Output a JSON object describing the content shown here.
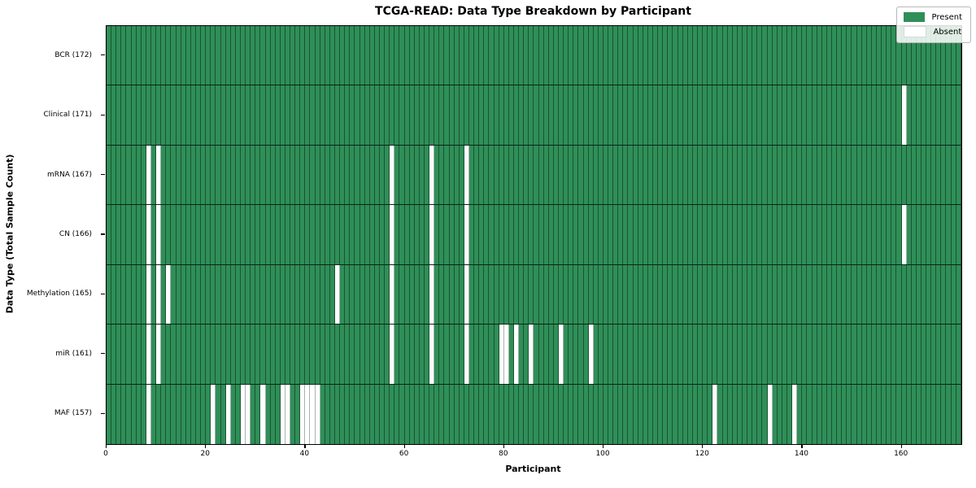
{
  "chart_data": {
    "type": "heatmap",
    "title": "TCGA-READ: Data Type Breakdown by Participant",
    "xlabel": "Participant",
    "ylabel": "Data Type (Total Sample Count)",
    "n_participants": 172,
    "x_ticks": [
      0,
      20,
      40,
      60,
      80,
      100,
      120,
      140,
      160
    ],
    "xlim": [
      0,
      172
    ],
    "legend": {
      "position": "upper right",
      "present_label": "Present",
      "absent_label": "Absent"
    },
    "colors": {
      "present": "#2f8f58",
      "absent": "#ffffff"
    },
    "rows": [
      {
        "label": "BCR (172)",
        "data_type": "BCR",
        "total_count": 172,
        "absent_participants": []
      },
      {
        "label": "Clinical (171)",
        "data_type": "Clinical",
        "total_count": 171,
        "absent_participants": [
          160
        ]
      },
      {
        "label": "mRNA (167)",
        "data_type": "mRNA",
        "total_count": 167,
        "absent_participants": [
          8,
          10,
          57,
          65,
          72
        ]
      },
      {
        "label": "CN (166)",
        "data_type": "CN",
        "total_count": 166,
        "absent_participants": [
          8,
          10,
          57,
          65,
          72,
          160
        ]
      },
      {
        "label": "Methylation (165)",
        "data_type": "Methylation",
        "total_count": 165,
        "absent_participants": [
          8,
          10,
          12,
          46,
          57,
          65,
          72
        ]
      },
      {
        "label": "miR (161)",
        "data_type": "miR",
        "total_count": 161,
        "absent_participants": [
          8,
          10,
          57,
          65,
          72,
          79,
          80,
          82,
          85,
          91,
          97
        ]
      },
      {
        "label": "MAF (157)",
        "data_type": "MAF",
        "total_count": 157,
        "absent_participants": [
          8,
          21,
          24,
          27,
          28,
          31,
          35,
          36,
          39,
          40,
          41,
          42,
          122,
          133,
          138
        ]
      }
    ]
  }
}
